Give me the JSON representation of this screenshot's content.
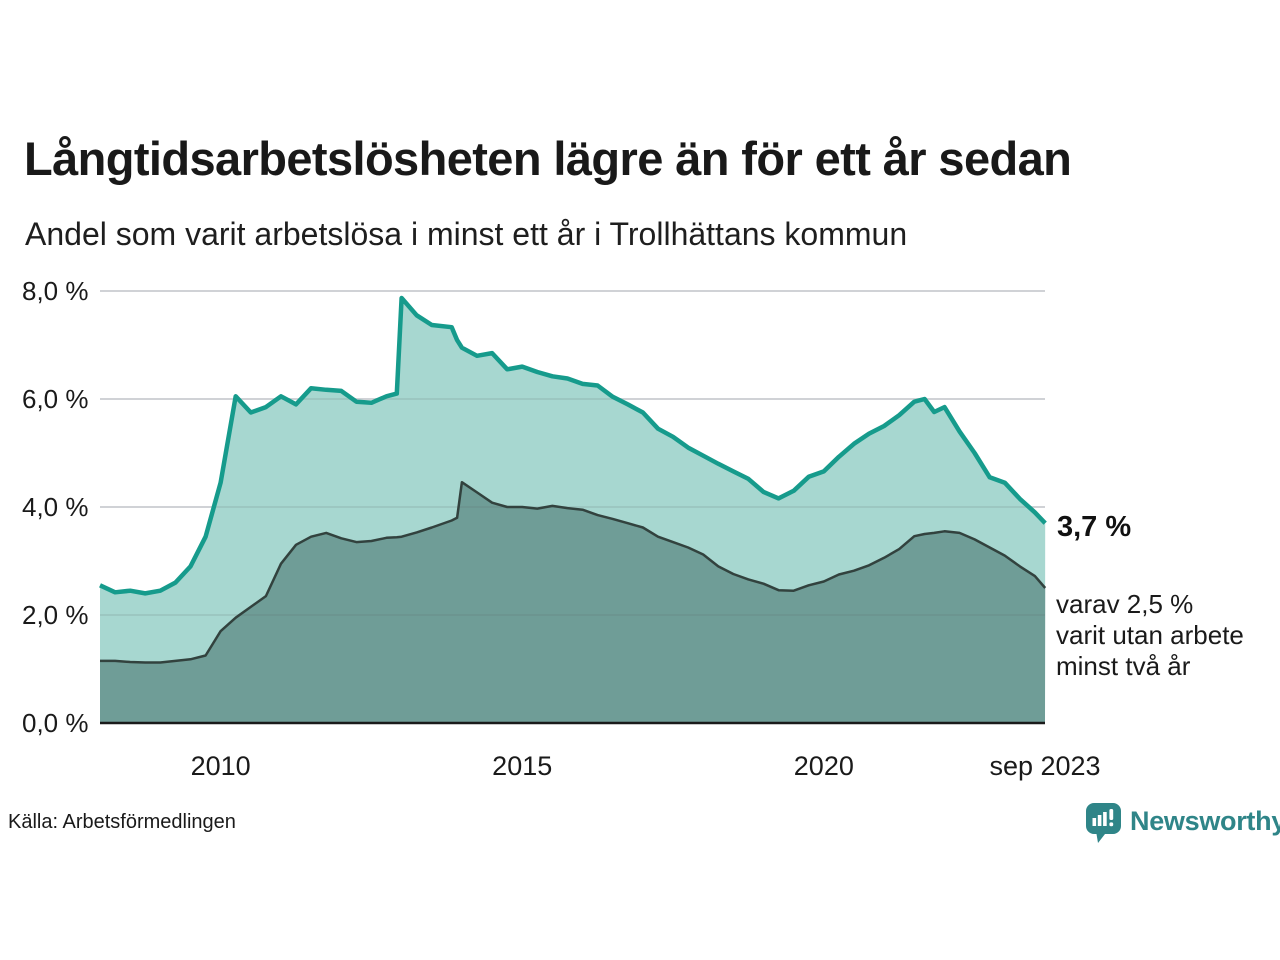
{
  "header": {
    "title": "Långtidsarbetslösheten lägre än för ett år sedan",
    "subtitle": "Andel som varit arbetslösa i minst ett år i Trollhättans kommun"
  },
  "annotations": {
    "latest_total": "3,7 %",
    "secondary": [
      "varav 2,5 %",
      "varit utan arbete",
      "minst två år"
    ]
  },
  "footer": {
    "source": "Källa: Arbetsförmedlingen",
    "brand": "Newsworthy"
  },
  "colors": {
    "line_one_year": "#169b8c",
    "fill_one_year": "#a7d7d0",
    "line_two_years": "#32423e",
    "fill_two_years": "#6f9d97",
    "gridline": "#e3e3e8",
    "axis_line": "#1a1a1a",
    "brand_teal": "#2f8588"
  },
  "chart_data": {
    "type": "area",
    "title": "Långtidsarbetslösheten lägre än för ett år sedan",
    "subtitle": "Andel som varit arbetslösa i minst ett år i Trollhättans kommun",
    "x_unit": "decimal_year",
    "xlim": [
      2008.0,
      2023.6667
    ],
    "ylim": [
      0,
      8.0
    ],
    "grid": true,
    "legend": "none",
    "x": [
      2008.0,
      2008.25,
      2008.5,
      2008.75,
      2009.0,
      2009.25,
      2009.5,
      2009.75,
      2010.0,
      2010.25,
      2010.5,
      2010.75,
      2011.0,
      2011.25,
      2011.5,
      2011.75,
      2012.0,
      2012.25,
      2012.5,
      2012.75,
      2012.92,
      2013.0,
      2013.25,
      2013.5,
      2013.83,
      2013.92,
      2014.0,
      2014.25,
      2014.5,
      2014.75,
      2015.0,
      2015.25,
      2015.5,
      2015.75,
      2016.0,
      2016.25,
      2016.5,
      2016.75,
      2017.0,
      2017.25,
      2017.5,
      2017.75,
      2018.0,
      2018.25,
      2018.5,
      2018.75,
      2019.0,
      2019.25,
      2019.5,
      2019.75,
      2020.0,
      2020.25,
      2020.5,
      2020.75,
      2021.0,
      2021.25,
      2021.5,
      2021.67,
      2021.83,
      2022.0,
      2022.25,
      2022.5,
      2022.75,
      2023.0,
      2023.25,
      2023.5,
      2023.67
    ],
    "series": [
      {
        "name": "arbetslösa minst ett år",
        "values": [
          2.55,
          2.42,
          2.45,
          2.4,
          2.45,
          2.6,
          2.9,
          3.45,
          4.45,
          6.05,
          5.75,
          5.85,
          6.05,
          5.9,
          6.2,
          6.17,
          6.15,
          5.95,
          5.93,
          6.05,
          6.1,
          7.87,
          7.55,
          7.37,
          7.33,
          7.09,
          6.95,
          6.8,
          6.85,
          6.55,
          6.6,
          6.5,
          6.42,
          6.38,
          6.28,
          6.25,
          6.04,
          5.9,
          5.75,
          5.45,
          5.3,
          5.1,
          4.95,
          4.8,
          4.66,
          4.52,
          4.28,
          4.16,
          4.3,
          4.56,
          4.66,
          4.93,
          5.17,
          5.36,
          5.5,
          5.7,
          5.95,
          6.0,
          5.76,
          5.85,
          5.4,
          5.0,
          4.55,
          4.45,
          4.15,
          3.9,
          3.7
        ],
        "last_value": 3.7
      },
      {
        "name": "arbetslösa minst två år",
        "values": [
          1.15,
          1.15,
          1.13,
          1.12,
          1.12,
          1.15,
          1.18,
          1.25,
          1.7,
          1.95,
          2.15,
          2.35,
          2.95,
          3.3,
          3.45,
          3.52,
          3.42,
          3.35,
          3.37,
          3.43,
          3.44,
          3.45,
          3.53,
          3.62,
          3.75,
          3.8,
          4.46,
          4.27,
          4.08,
          4.0,
          4.0,
          3.97,
          4.02,
          3.98,
          3.95,
          3.85,
          3.78,
          3.7,
          3.62,
          3.45,
          3.35,
          3.25,
          3.12,
          2.9,
          2.76,
          2.66,
          2.58,
          2.46,
          2.45,
          2.55,
          2.62,
          2.75,
          2.82,
          2.92,
          3.06,
          3.22,
          3.46,
          3.5,
          3.52,
          3.55,
          3.52,
          3.4,
          3.25,
          3.1,
          2.9,
          2.72,
          2.5
        ],
        "last_value": 2.5
      }
    ],
    "yticks": [
      {
        "v": 0,
        "label": "0,0 %"
      },
      {
        "v": 2,
        "label": "2,0 %"
      },
      {
        "v": 4,
        "label": "4,0 %"
      },
      {
        "v": 6,
        "label": "6,0 %"
      },
      {
        "v": 8,
        "label": "8,0 %"
      }
    ],
    "xticks": [
      {
        "v": 2010,
        "label": "2010"
      },
      {
        "v": 2015,
        "label": "2015"
      },
      {
        "v": 2020,
        "label": "2020"
      },
      {
        "v": 2023.6667,
        "label": "sep 2023"
      }
    ]
  }
}
